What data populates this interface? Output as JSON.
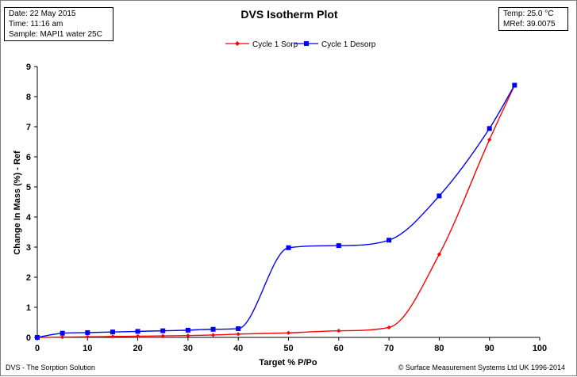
{
  "info": {
    "date": "Date: 22 May 2015",
    "time": "Time: 11:16 am",
    "sample": "Sample: MAPI1 water 25C"
  },
  "conditions": {
    "temp": "Temp: 25.0 °C",
    "mref": "MRef: 39.0075"
  },
  "footer": {
    "left": "DVS - The Sorption Solution",
    "right": "© Surface Measurement Systems Ltd UK 1996-2014"
  },
  "colors": {
    "sorp": "#ff0000",
    "desorp": "#0000ff"
  },
  "chart_data": {
    "type": "line",
    "title": "DVS Isotherm Plot",
    "xlabel": "Target % P/Po",
    "ylabel": "Change In Mass (%) - Ref",
    "xlim": [
      0,
      100
    ],
    "ylim": [
      0,
      9
    ],
    "xticks": [
      0,
      10,
      20,
      30,
      40,
      50,
      60,
      70,
      80,
      90,
      100
    ],
    "yticks": [
      0,
      1,
      2,
      3,
      4,
      5,
      6,
      7,
      8,
      9
    ],
    "grid": false,
    "legend_position": "top-center",
    "series": [
      {
        "name": "Cycle 1 Sorp",
        "color": "#ff0000",
        "marker": "diamond",
        "x": [
          0,
          5,
          10,
          15,
          20,
          25,
          30,
          35,
          40,
          50,
          60,
          70,
          80,
          90,
          95
        ],
        "y": [
          0,
          0.01,
          0.02,
          0.03,
          0.04,
          0.05,
          0.06,
          0.08,
          0.11,
          0.15,
          0.22,
          0.33,
          2.76,
          6.57,
          8.38
        ]
      },
      {
        "name": "Cycle 1 Desorp",
        "color": "#0000ff",
        "marker": "square",
        "x": [
          0,
          5,
          10,
          15,
          20,
          25,
          30,
          35,
          40,
          50,
          60,
          70,
          80,
          90,
          95
        ],
        "y": [
          0,
          0.14,
          0.16,
          0.18,
          0.2,
          0.22,
          0.24,
          0.27,
          0.29,
          2.98,
          3.05,
          3.23,
          4.7,
          6.94,
          8.38
        ]
      }
    ]
  }
}
